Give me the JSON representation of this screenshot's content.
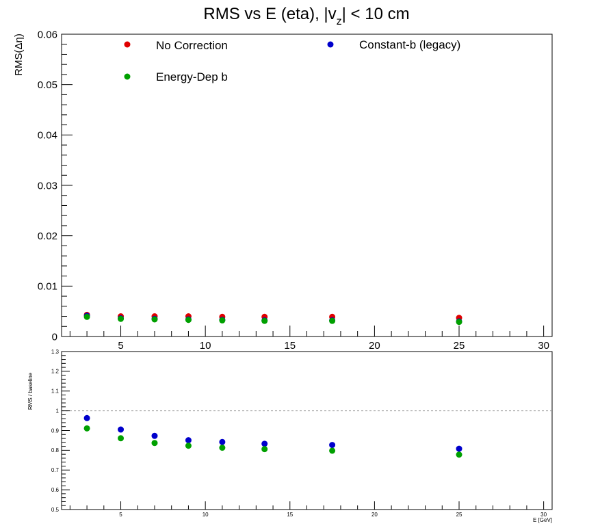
{
  "title_main": "RMS vs E (eta), |v",
  "title_sub": "z",
  "title_tail": "| < 10 cm",
  "colors": {
    "no_correction": "#e00000",
    "constant_b": "#0000cc",
    "energy_dep_b": "#00a000",
    "reference_line": "#999999"
  },
  "chart_data": [
    {
      "type": "scatter",
      "panel": "top",
      "ylabel": "RMS(Δη)",
      "xlabel": "",
      "xlim": [
        1.5,
        30.5
      ],
      "ylim": [
        0,
        0.06
      ],
      "xticks": [
        5,
        10,
        15,
        20,
        25,
        30
      ],
      "xtick_labels": [
        "5",
        "10",
        "15",
        "20",
        "25",
        "30"
      ],
      "yticks": [
        0,
        0.01,
        0.02,
        0.03,
        0.04,
        0.05,
        0.06
      ],
      "ytick_labels": [
        "0",
        "0.01",
        "0.02",
        "0.03",
        "0.04",
        "0.05",
        "0.06"
      ],
      "x": [
        3,
        5,
        7,
        9,
        11,
        13.5,
        17.5,
        25
      ],
      "legend": {
        "entries": [
          {
            "label": "No Correction",
            "series_key": "no_correction"
          },
          {
            "label": "Constant-b (legacy)",
            "series_key": "constant_b"
          },
          {
            "label": "Energy-Dep b",
            "series_key": "energy_dep_b"
          }
        ]
      },
      "series": [
        {
          "key": "no_correction",
          "name": "No Correction",
          "values": [
            0.0043,
            0.004,
            0.004,
            0.004,
            0.0039,
            0.0039,
            0.0039,
            0.0037
          ]
        },
        {
          "key": "constant_b",
          "name": "Constant-b (legacy)",
          "values": [
            0.0041,
            0.0036,
            0.0035,
            0.0034,
            0.0033,
            0.0032,
            0.0032,
            0.003
          ]
        },
        {
          "key": "energy_dep_b",
          "name": "Energy-Dep b",
          "values": [
            0.0039,
            0.0035,
            0.0034,
            0.0033,
            0.0032,
            0.0031,
            0.0031,
            0.0029
          ]
        }
      ]
    },
    {
      "type": "scatter",
      "panel": "bottom",
      "ylabel": "RMS / baseline",
      "xlabel": "E [GeV]",
      "xlim": [
        1.5,
        30.5
      ],
      "ylim": [
        0.5,
        1.3
      ],
      "reference_line": 1.0,
      "xticks": [
        5,
        10,
        15,
        20,
        25,
        30
      ],
      "xtick_labels": [
        "5",
        "10",
        "15",
        "20",
        "25",
        "30"
      ],
      "yticks": [
        0.5,
        0.6,
        0.7,
        0.8,
        0.9,
        1.0,
        1.1,
        1.2,
        1.3
      ],
      "ytick_labels": [
        "0.5",
        "0.6",
        "0.7",
        "0.8",
        "0.9",
        "1",
        "1.1",
        "1.2",
        "1.3"
      ],
      "x": [
        3,
        5,
        7,
        9,
        11,
        13.5,
        17.5,
        25
      ],
      "series": [
        {
          "key": "constant_b",
          "values": [
            0.963,
            0.905,
            0.873,
            0.851,
            0.842,
            0.833,
            0.827,
            0.808
          ]
        },
        {
          "key": "energy_dep_b",
          "values": [
            0.911,
            0.861,
            0.837,
            0.823,
            0.813,
            0.806,
            0.798,
            0.778
          ]
        }
      ]
    }
  ]
}
